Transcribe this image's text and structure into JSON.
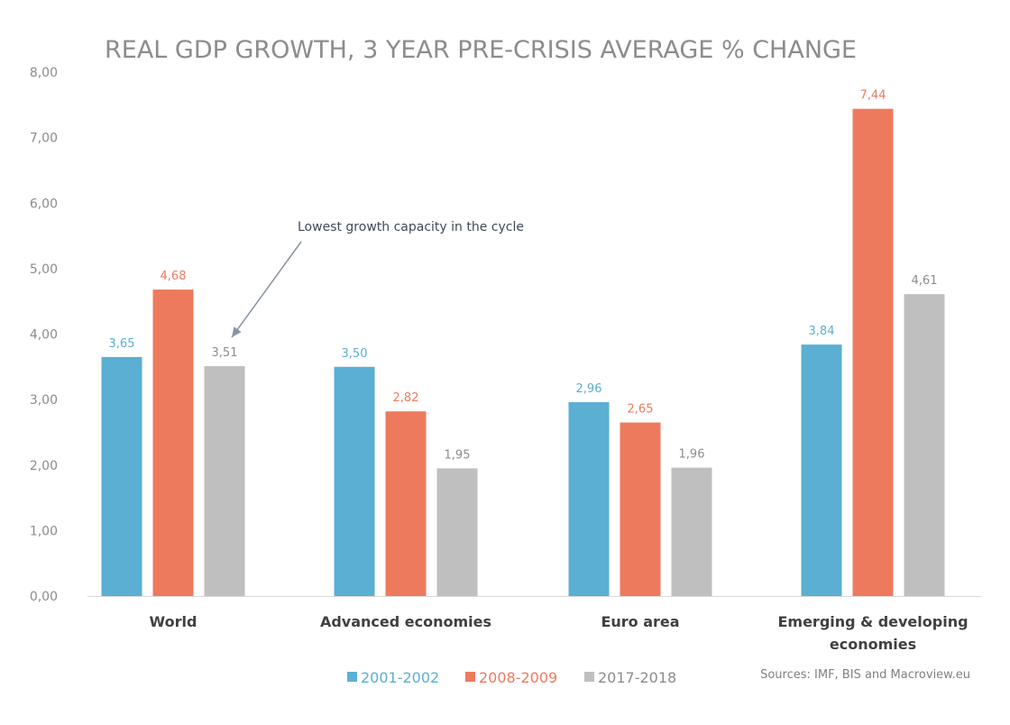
{
  "chart_data": {
    "type": "bar",
    "title": "REAL GDP GROWTH, 3 YEAR PRE-CRISIS AVERAGE % CHANGE",
    "categories": [
      [
        "World"
      ],
      [
        "Advanced economies"
      ],
      [
        "Euro area"
      ],
      [
        "Emerging & developing",
        "economies"
      ]
    ],
    "series": [
      {
        "name": "2001-2002",
        "color": "#5aafd3",
        "values": [
          3.65,
          3.5,
          2.96,
          3.84
        ],
        "labels": [
          "3,65",
          "3,50",
          "2,96",
          "3,84"
        ]
      },
      {
        "name": "2008-2009",
        "color": "#ee7a5e",
        "values": [
          4.68,
          2.82,
          2.65,
          7.44
        ],
        "labels": [
          "4,68",
          "2,82",
          "2,65",
          "7,44"
        ]
      },
      {
        "name": "2017-2018",
        "color": "#bfbfbf",
        "values": [
          3.51,
          1.95,
          1.96,
          4.61
        ],
        "labels": [
          "3,51",
          "1,95",
          "1,96",
          "4,61"
        ]
      }
    ],
    "ylim": [
      0,
      8
    ],
    "yticks": [
      "0,00",
      "1,00",
      "2,00",
      "3,00",
      "4,00",
      "5,00",
      "6,00",
      "7,00",
      "8,00"
    ],
    "data_label_colors": [
      "#5aafd3",
      "#ee7a5e",
      "#8c8c8c"
    ],
    "annotation": {
      "text": "Lowest growth capacity in the cycle",
      "target_category": 0,
      "target_series": 2
    },
    "legend_position": "bottom",
    "grid": false,
    "axis_color": "#d9d9d9"
  },
  "source_text": "Sources: IMF, BIS and Macroview.eu"
}
